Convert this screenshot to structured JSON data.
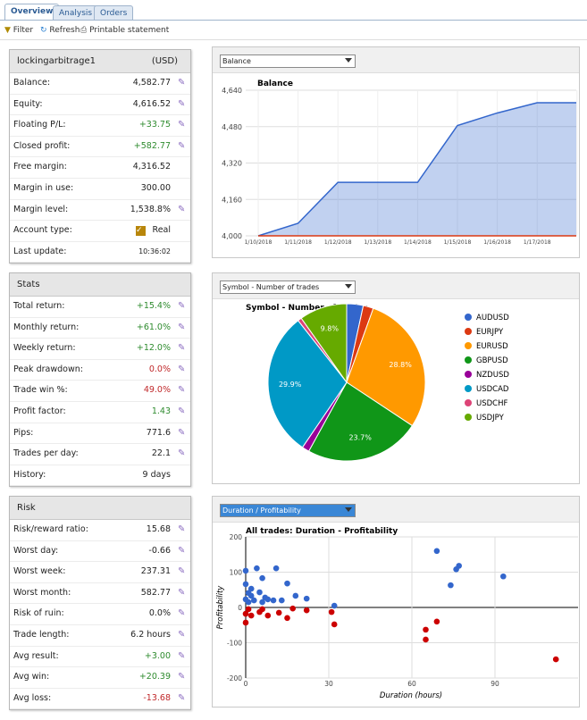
{
  "tabs": [
    "Overview",
    "Analysis",
    "Orders"
  ],
  "toolbar": [
    "Filter",
    "Refresh",
    "Printable statement"
  ],
  "account": {
    "name": "lockingarbitrage1",
    "currency": "(USD)",
    "rows": [
      {
        "label": "Balance:",
        "value": "4,582.77",
        "edit": true
      },
      {
        "label": "Equity:",
        "value": "4,616.52",
        "edit": true
      },
      {
        "label": "Floating P/L:",
        "value": "+33.75",
        "color": "#2e8b2e",
        "edit": true
      },
      {
        "label": "Closed profit:",
        "value": "+582.77",
        "color": "#2e8b2e",
        "edit": true
      },
      {
        "label": "Free margin:",
        "value": "4,316.52"
      },
      {
        "label": "Margin in use:",
        "value": "300.00"
      },
      {
        "label": "Margin level:",
        "value": "1,538.8%",
        "edit": true
      },
      {
        "label": "Account type:",
        "value": "Real",
        "check": true
      },
      {
        "label": "Last update:",
        "value": "10:36:02",
        "small": true
      }
    ]
  },
  "stats": {
    "title": "Stats",
    "rows": [
      {
        "label": "Total return:",
        "value": "+15.4%",
        "color": "#2e8b2e",
        "edit": true
      },
      {
        "label": "Monthly return:",
        "value": "+61.0%",
        "color": "#2e8b2e",
        "edit": true
      },
      {
        "label": "Weekly return:",
        "value": "+12.0%",
        "color": "#2e8b2e",
        "edit": true
      },
      {
        "label": "Peak drawdown:",
        "value": "0.0%",
        "color": "#c0282a",
        "edit": true
      },
      {
        "label": "Trade win %:",
        "value": "49.0%",
        "color": "#c0282a",
        "edit": true
      },
      {
        "label": "Profit factor:",
        "value": "1.43",
        "color": "#2e8b2e",
        "edit": true
      },
      {
        "label": "Pips:",
        "value": "771.6",
        "edit": true
      },
      {
        "label": "Trades per day:",
        "value": "22.1",
        "edit": true
      },
      {
        "label": "History:",
        "value": "9 days"
      }
    ]
  },
  "risk": {
    "title": "Risk",
    "rows": [
      {
        "label": "Risk/reward ratio:",
        "value": "15.68",
        "edit": true
      },
      {
        "label": "Worst day:",
        "value": "-0.66",
        "edit": true
      },
      {
        "label": "Worst week:",
        "value": "237.31",
        "edit": true
      },
      {
        "label": "Worst month:",
        "value": "582.77",
        "edit": true
      },
      {
        "label": "Risk of ruin:",
        "value": "0.0%",
        "edit": true
      },
      {
        "label": "Trade length:",
        "value": "6.2 hours",
        "edit": true
      },
      {
        "label": "Avg result:",
        "value": "+3.00",
        "color": "#2e8b2e",
        "edit": true
      },
      {
        "label": "Avg win:",
        "value": "+20.39",
        "color": "#2e8b2e",
        "edit": true
      },
      {
        "label": "Avg loss:",
        "value": "-13.68",
        "color": "#c0282a",
        "edit": true
      }
    ]
  },
  "chart_data": [
    {
      "type": "line",
      "selector": "Balance",
      "title": "Balance",
      "categories": [
        "1/10/2018",
        "1/11/2018",
        "1/12/2018",
        "1/13/2018",
        "1/14/2018",
        "1/15/2018",
        "1/16/2018",
        "1/17/2018",
        null
      ],
      "series": [
        {
          "color": "#3366cc",
          "values": [
            4000,
            4055,
            4235,
            4235,
            4235,
            4485,
            4540,
            4585,
            4585
          ],
          "area": true
        },
        {
          "color": "#dc3912",
          "values": [
            4000,
            4000,
            4000,
            4000,
            4000,
            4000,
            4000,
            4000,
            4000
          ]
        }
      ],
      "ylim": [
        4000,
        4640
      ],
      "yticks": [
        {
          "value": 4000,
          "label": "4,000"
        },
        {
          "value": 4160,
          "label": "4,160"
        },
        {
          "value": 4320,
          "label": "4,320"
        },
        {
          "value": 4480,
          "label": "4,480"
        },
        {
          "value": 4640,
          "label": "4,640"
        }
      ],
      "grid": true
    },
    {
      "type": "pie",
      "selector": "Symbol - Number of trades",
      "title": "Symbol - Number of trades",
      "categories": [
        "AUDUSD",
        "EURJPY",
        "EURUSD",
        "GBPUSD",
        "NZDUSD",
        "USDCAD",
        "USDCHF",
        "USDJPY"
      ],
      "values": [
        3.4,
        2.1,
        28.8,
        23.7,
        1.5,
        29.9,
        0.8,
        9.8
      ],
      "value_labels": [
        null,
        null,
        "28.8%",
        "23.7%",
        null,
        "29.9%",
        null,
        "9.8%"
      ],
      "colors": [
        "#3366cc",
        "#dc3912",
        "#ff9900",
        "#109618",
        "#990099",
        "#0099c6",
        "#dd4477",
        "#66aa00"
      ],
      "legend": "right"
    },
    {
      "type": "scatter",
      "selector": "Duration / Profitability",
      "title": "All trades: Duration - Profitability",
      "xlabel": "Duration (hours)",
      "ylabel": "Profitability",
      "series": [
        {
          "color": "#3366cc",
          "x": [
            69,
            77,
            76,
            74,
            93,
            11,
            0,
            4,
            6,
            15,
            0,
            2,
            1,
            2,
            5,
            7,
            8,
            10,
            13,
            18,
            22,
            32,
            0,
            3,
            6,
            1
          ],
          "values": [
            160,
            118,
            108,
            63,
            88,
            111,
            104,
            111,
            83,
            68,
            66,
            53,
            41,
            33,
            43,
            28,
            23,
            20,
            20,
            33,
            25,
            5,
            23,
            20,
            15,
            15
          ]
        },
        {
          "color": "#cc0000",
          "x": [
            0,
            2,
            5,
            6,
            8,
            12,
            15,
            17,
            22,
            31,
            32,
            69,
            65,
            65,
            112,
            0,
            1
          ],
          "values": [
            -43,
            -23,
            -13,
            -5,
            -23,
            -15,
            -30,
            -3,
            -8,
            -13,
            -48,
            -40,
            -63,
            -91,
            -147,
            -18,
            -5
          ]
        }
      ],
      "xlim": [
        0,
        120
      ],
      "xticks": [
        0,
        30,
        60,
        90
      ],
      "ylim": [
        -200,
        200
      ],
      "yticks": [
        200,
        100,
        0,
        -100,
        -200
      ],
      "grid": true
    }
  ]
}
